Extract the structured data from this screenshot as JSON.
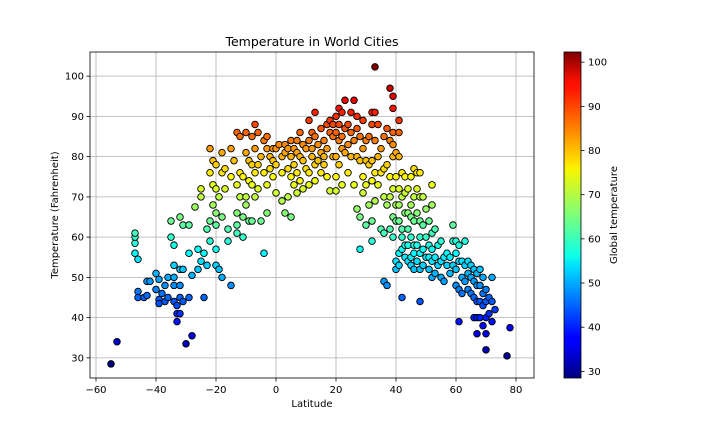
{
  "chart_data": {
    "type": "scatter",
    "title": "Temperature in World Cities",
    "xlabel": "Latitude",
    "ylabel": "Temperature (Fahrenheit)",
    "xlim": [
      -62,
      86
    ],
    "ylim": [
      25,
      106
    ],
    "xticks": [
      -60,
      -40,
      -20,
      0,
      20,
      40,
      60,
      80
    ],
    "yticks": [
      30,
      40,
      50,
      60,
      70,
      80,
      90,
      100
    ],
    "grid": true,
    "colorbar": {
      "label": "Global temperature",
      "range": [
        28.5,
        102.3
      ],
      "ticks": [
        30,
        40,
        50,
        60,
        70,
        80,
        90,
        100
      ],
      "colormap": "jet"
    },
    "points": [
      [
        -55,
        28.5
      ],
      [
        -53,
        34
      ],
      [
        -47,
        56
      ],
      [
        -47,
        58.5
      ],
      [
        -47,
        60
      ],
      [
        -47,
        61
      ],
      [
        -46,
        54.5
      ],
      [
        -46,
        46.5
      ],
      [
        -46,
        45
      ],
      [
        -44,
        45
      ],
      [
        -43,
        45.5
      ],
      [
        -43,
        49
      ],
      [
        -42,
        49
      ],
      [
        -40,
        51
      ],
      [
        -40,
        47
      ],
      [
        -39,
        49.5
      ],
      [
        -39,
        44.5
      ],
      [
        -39,
        43.5
      ],
      [
        -38,
        46
      ],
      [
        -37,
        48
      ],
      [
        -37,
        44
      ],
      [
        -36,
        50
      ],
      [
        -36,
        45
      ],
      [
        -35,
        64
      ],
      [
        -35,
        60
      ],
      [
        -34,
        58
      ],
      [
        -34,
        53
      ],
      [
        -34,
        50
      ],
      [
        -34,
        48
      ],
      [
        -34,
        44
      ],
      [
        -33,
        43
      ],
      [
        -33,
        39
      ],
      [
        -33,
        41
      ],
      [
        -32,
        65
      ],
      [
        -32,
        52
      ],
      [
        -32,
        48
      ],
      [
        -32,
        45
      ],
      [
        -32,
        41
      ],
      [
        -31,
        63
      ],
      [
        -31,
        52
      ],
      [
        -31,
        44
      ],
      [
        -30,
        33.5
      ],
      [
        -29,
        56
      ],
      [
        -29,
        63
      ],
      [
        -29,
        45
      ],
      [
        -28,
        50.5
      ],
      [
        -28,
        35.5
      ],
      [
        -27,
        67.5
      ],
      [
        -26,
        57
      ],
      [
        -26,
        52
      ],
      [
        -25,
        72
      ],
      [
        -25,
        70
      ],
      [
        -25,
        54
      ],
      [
        -24,
        56
      ],
      [
        -24,
        45
      ],
      [
        -23,
        53
      ],
      [
        -23,
        62
      ],
      [
        -22,
        82
      ],
      [
        -22,
        76
      ],
      [
        -22,
        64
      ],
      [
        -22,
        59
      ],
      [
        -21,
        79
      ],
      [
        -21,
        73
      ],
      [
        -21,
        68
      ],
      [
        -20,
        78
      ],
      [
        -20,
        72
      ],
      [
        -20,
        66
      ],
      [
        -20,
        63
      ],
      [
        -20,
        57
      ],
      [
        -20,
        53
      ],
      [
        -19,
        70
      ],
      [
        -19,
        52
      ],
      [
        -18,
        65
      ],
      [
        -18,
        81
      ],
      [
        -18,
        76
      ],
      [
        -18,
        50
      ],
      [
        -17,
        77
      ],
      [
        -17,
        72
      ],
      [
        -16,
        62
      ],
      [
        -16,
        59
      ],
      [
        -15,
        82
      ],
      [
        -15,
        75
      ],
      [
        -15,
        48
      ],
      [
        -14,
        79
      ],
      [
        -13,
        86
      ],
      [
        -13,
        73
      ],
      [
        -13,
        66
      ],
      [
        -13,
        63
      ],
      [
        -13,
        61
      ],
      [
        -12,
        85
      ],
      [
        -12,
        76
      ],
      [
        -12,
        70
      ],
      [
        -11,
        75
      ],
      [
        -11,
        65
      ],
      [
        -11,
        60
      ],
      [
        -10,
        86
      ],
      [
        -10,
        81
      ],
      [
        -10,
        70
      ],
      [
        -10,
        68
      ],
      [
        -9,
        79
      ],
      [
        -9,
        74
      ],
      [
        -9,
        64
      ],
      [
        -8,
        85
      ],
      [
        -8,
        78
      ],
      [
        -8,
        73
      ],
      [
        -8,
        64
      ],
      [
        -7,
        88
      ],
      [
        -7,
        82
      ],
      [
        -7,
        76
      ],
      [
        -7,
        70
      ],
      [
        -6,
        86
      ],
      [
        -6,
        78
      ],
      [
        -6,
        72
      ],
      [
        -5,
        80
      ],
      [
        -5,
        64
      ],
      [
        -4,
        84
      ],
      [
        -4,
        76
      ],
      [
        -4,
        56
      ],
      [
        -3,
        85
      ],
      [
        -3,
        82
      ],
      [
        -3,
        73
      ],
      [
        -3,
        66
      ],
      [
        -2,
        80
      ],
      [
        -2,
        77
      ],
      [
        -1,
        82
      ],
      [
        -1,
        79
      ],
      [
        -1,
        75
      ],
      [
        0,
        82
      ],
      [
        0,
        78
      ],
      [
        0,
        71
      ],
      [
        1,
        83
      ],
      [
        2,
        80
      ],
      [
        2,
        76
      ],
      [
        2,
        69
      ],
      [
        3,
        83
      ],
      [
        3,
        81
      ],
      [
        3,
        66
      ],
      [
        4,
        82
      ],
      [
        4,
        77
      ],
      [
        4,
        70
      ],
      [
        5,
        84
      ],
      [
        5,
        80
      ],
      [
        5,
        75
      ],
      [
        5,
        65
      ],
      [
        6,
        82
      ],
      [
        6,
        78
      ],
      [
        6,
        73
      ],
      [
        7,
        84
      ],
      [
        7,
        81
      ],
      [
        7,
        76
      ],
      [
        7,
        71
      ],
      [
        8,
        86
      ],
      [
        8,
        80
      ],
      [
        8,
        74
      ],
      [
        9,
        83
      ],
      [
        9,
        79
      ],
      [
        9,
        72
      ],
      [
        10,
        82
      ],
      [
        10,
        77
      ],
      [
        11,
        89
      ],
      [
        11,
        84
      ],
      [
        11,
        76
      ],
      [
        11,
        73
      ],
      [
        12,
        86
      ],
      [
        12,
        82
      ],
      [
        12,
        80
      ],
      [
        13,
        91
      ],
      [
        13,
        85
      ],
      [
        13,
        78
      ],
      [
        13,
        74
      ],
      [
        14,
        83
      ],
      [
        14,
        79
      ],
      [
        15,
        87
      ],
      [
        15,
        81
      ],
      [
        15,
        76
      ],
      [
        16,
        84
      ],
      [
        16,
        78
      ],
      [
        16,
        80
      ],
      [
        17,
        88
      ],
      [
        17,
        82
      ],
      [
        17,
        75
      ],
      [
        18,
        89
      ],
      [
        18,
        86
      ],
      [
        18,
        71.5
      ],
      [
        19,
        88
      ],
      [
        19,
        85
      ],
      [
        19,
        80
      ],
      [
        20,
        90
      ],
      [
        20,
        86
      ],
      [
        20,
        80
      ],
      [
        20,
        75
      ],
      [
        20,
        71.5
      ],
      [
        21,
        92
      ],
      [
        21,
        88
      ],
      [
        21,
        84
      ],
      [
        21,
        78
      ],
      [
        22,
        91
      ],
      [
        22,
        85
      ],
      [
        22,
        73
      ],
      [
        22,
        82
      ],
      [
        23,
        94
      ],
      [
        23,
        87
      ],
      [
        23,
        81
      ],
      [
        24,
        88
      ],
      [
        24,
        83
      ],
      [
        24,
        76
      ],
      [
        25,
        91
      ],
      [
        25,
        86
      ],
      [
        25,
        80
      ],
      [
        26,
        94
      ],
      [
        26,
        84
      ],
      [
        26,
        73
      ],
      [
        27,
        90
      ],
      [
        27,
        87
      ],
      [
        27,
        80
      ],
      [
        27,
        67
      ],
      [
        28,
        85
      ],
      [
        28,
        79
      ],
      [
        28,
        65
      ],
      [
        28,
        57
      ],
      [
        29,
        89
      ],
      [
        29,
        82
      ],
      [
        29,
        75
      ],
      [
        29,
        71
      ],
      [
        30,
        84
      ],
      [
        30,
        79
      ],
      [
        30,
        73
      ],
      [
        30,
        63
      ],
      [
        31,
        85
      ],
      [
        31,
        78
      ],
      [
        31,
        68
      ],
      [
        32,
        91
      ],
      [
        32,
        88
      ],
      [
        32,
        79
      ],
      [
        32,
        74
      ],
      [
        32,
        64
      ],
      [
        32,
        59
      ],
      [
        33,
        102.3
      ],
      [
        33,
        91
      ],
      [
        33,
        84
      ],
      [
        33,
        76
      ],
      [
        33,
        69
      ],
      [
        34,
        88
      ],
      [
        34,
        80
      ],
      [
        34,
        73
      ],
      [
        35,
        82
      ],
      [
        35,
        76
      ],
      [
        35,
        62
      ],
      [
        36,
        85
      ],
      [
        36,
        77
      ],
      [
        36,
        70
      ],
      [
        36,
        61
      ],
      [
        36,
        49
      ],
      [
        37,
        87
      ],
      [
        37,
        78
      ],
      [
        37,
        68
      ],
      [
        37,
        48
      ],
      [
        38,
        97
      ],
      [
        38,
        84
      ],
      [
        38,
        75
      ],
      [
        38,
        70
      ],
      [
        38,
        62
      ],
      [
        39,
        95
      ],
      [
        39,
        92
      ],
      [
        39,
        86
      ],
      [
        39,
        83
      ],
      [
        39,
        80
      ],
      [
        39,
        72
      ],
      [
        39,
        65
      ],
      [
        39,
        60
      ],
      [
        40,
        81
      ],
      [
        40,
        75
      ],
      [
        40,
        68
      ],
      [
        40,
        64
      ],
      [
        40,
        54
      ],
      [
        40,
        52
      ],
      [
        41,
        89
      ],
      [
        41,
        86
      ],
      [
        41,
        80
      ],
      [
        41,
        72
      ],
      [
        41,
        68
      ],
      [
        41,
        64
      ],
      [
        41,
        56
      ],
      [
        41,
        53
      ],
      [
        42,
        76
      ],
      [
        42,
        70
      ],
      [
        42,
        62
      ],
      [
        42,
        60
      ],
      [
        42,
        57
      ],
      [
        42,
        45
      ],
      [
        43,
        75
      ],
      [
        43,
        71
      ],
      [
        43,
        66
      ],
      [
        43,
        58
      ],
      [
        43,
        55
      ],
      [
        44,
        72
      ],
      [
        44,
        66
      ],
      [
        44,
        62
      ],
      [
        44,
        58
      ],
      [
        44,
        54
      ],
      [
        45,
        75
      ],
      [
        45,
        68
      ],
      [
        45,
        65
      ],
      [
        45,
        60
      ],
      [
        45,
        55
      ],
      [
        45,
        53
      ],
      [
        46,
        77
      ],
      [
        46,
        70
      ],
      [
        46,
        64
      ],
      [
        46,
        58
      ],
      [
        46,
        56
      ],
      [
        46,
        52
      ],
      [
        47,
        76
      ],
      [
        47,
        72
      ],
      [
        47,
        66
      ],
      [
        47,
        58
      ],
      [
        47,
        54
      ],
      [
        48,
        76
      ],
      [
        48,
        70
      ],
      [
        48,
        64
      ],
      [
        48,
        60
      ],
      [
        48,
        56
      ],
      [
        48,
        52
      ],
      [
        48,
        44
      ],
      [
        49,
        70
      ],
      [
        49,
        63
      ],
      [
        49,
        57
      ],
      [
        49,
        53
      ],
      [
        50,
        67
      ],
      [
        50,
        60
      ],
      [
        50,
        55
      ],
      [
        51,
        64
      ],
      [
        51,
        58
      ],
      [
        51,
        55
      ],
      [
        51,
        52
      ],
      [
        52,
        73
      ],
      [
        52,
        68
      ],
      [
        52,
        61
      ],
      [
        52,
        57
      ],
      [
        52,
        54
      ],
      [
        52,
        50
      ],
      [
        53,
        62
      ],
      [
        53,
        55
      ],
      [
        53,
        51
      ],
      [
        54,
        58
      ],
      [
        54,
        53
      ],
      [
        55,
        59
      ],
      [
        55,
        54
      ],
      [
        55,
        50
      ],
      [
        56,
        55
      ],
      [
        56,
        49
      ],
      [
        57,
        56
      ],
      [
        57,
        53
      ],
      [
        58,
        55
      ],
      [
        58,
        51
      ],
      [
        59,
        63
      ],
      [
        59,
        59
      ],
      [
        59,
        53
      ],
      [
        60,
        59
      ],
      [
        60,
        56
      ],
      [
        60,
        52
      ],
      [
        60,
        48
      ],
      [
        61,
        58
      ],
      [
        61,
        54
      ],
      [
        61,
        47
      ],
      [
        61,
        39
      ],
      [
        62,
        54
      ],
      [
        62,
        50
      ],
      [
        62,
        46
      ],
      [
        63,
        59
      ],
      [
        63,
        53
      ],
      [
        63,
        49
      ],
      [
        64,
        54
      ],
      [
        64,
        51
      ],
      [
        64,
        47
      ],
      [
        65,
        53
      ],
      [
        65,
        50
      ],
      [
        65,
        46
      ],
      [
        66,
        52
      ],
      [
        66,
        49
      ],
      [
        66,
        45
      ],
      [
        66,
        40
      ],
      [
        67,
        51
      ],
      [
        67,
        48
      ],
      [
        67,
        44
      ],
      [
        67,
        40
      ],
      [
        67,
        36
      ],
      [
        68,
        52
      ],
      [
        68,
        48
      ],
      [
        68,
        44
      ],
      [
        68,
        40
      ],
      [
        69,
        50
      ],
      [
        69,
        46
      ],
      [
        69,
        43
      ],
      [
        69,
        38
      ],
      [
        70,
        47
      ],
      [
        70,
        44
      ],
      [
        70,
        40
      ],
      [
        70,
        36
      ],
      [
        70,
        32
      ],
      [
        71,
        45
      ],
      [
        71,
        41
      ],
      [
        72,
        50
      ],
      [
        72,
        44
      ],
      [
        72,
        39
      ],
      [
        73,
        42
      ],
      [
        77,
        30.5
      ],
      [
        78,
        37.5
      ]
    ]
  }
}
